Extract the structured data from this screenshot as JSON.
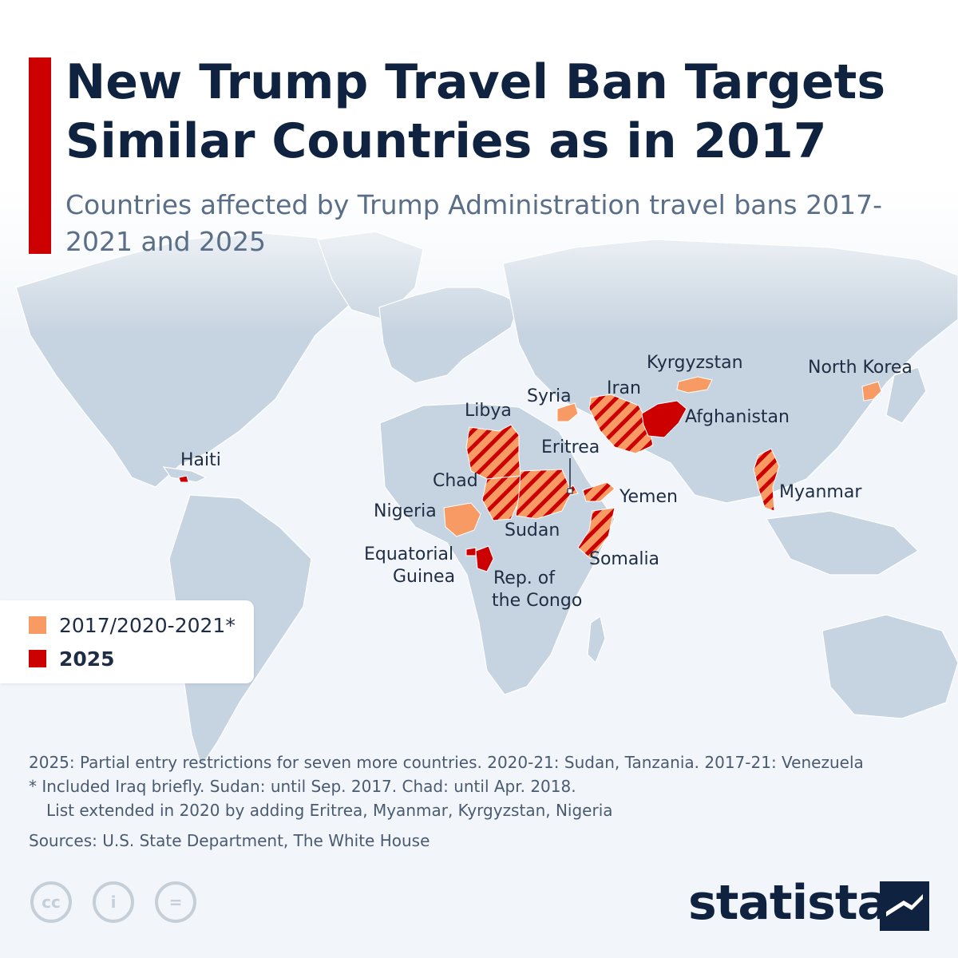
{
  "title": "New Trump Travel Ban Targets Similar Countries as in 2017",
  "subtitle": "Countries affected by Trump Administration travel bans 2017-2021 and 2025",
  "colors": {
    "earlier_ban": "#f79a63",
    "ban_2025": "#cc0000",
    "land": "#c6d3e0",
    "ocean": "#f2f6fa",
    "title": "#0f2340"
  },
  "legend": {
    "items": [
      {
        "label": "2017/2020-2021*",
        "color": "#f79a63",
        "bold": false
      },
      {
        "label": "2025",
        "color": "#cc0000",
        "bold": true
      }
    ]
  },
  "map_data": {
    "countries": [
      {
        "name": "Haiti",
        "status": "2025"
      },
      {
        "name": "Libya",
        "status": "both"
      },
      {
        "name": "Syria",
        "status": "2017/2020-2021"
      },
      {
        "name": "Iran",
        "status": "both"
      },
      {
        "name": "Kyrgyzstan",
        "status": "2017/2020-2021"
      },
      {
        "name": "North Korea",
        "status": "2017/2020-2021"
      },
      {
        "name": "Afghanistan",
        "status": "2025"
      },
      {
        "name": "Eritrea",
        "status": "both"
      },
      {
        "name": "Chad",
        "status": "both"
      },
      {
        "name": "Yemen",
        "status": "both"
      },
      {
        "name": "Myanmar",
        "status": "both"
      },
      {
        "name": "Nigeria",
        "status": "2017/2020-2021"
      },
      {
        "name": "Sudan",
        "status": "both"
      },
      {
        "name": "Somalia",
        "status": "both"
      },
      {
        "name": "Equatorial Guinea",
        "status": "2025"
      },
      {
        "name": "Rep. of the Congo",
        "status": "2025"
      }
    ]
  },
  "labels": {
    "haiti": "Haiti",
    "libya": "Libya",
    "syria": "Syria",
    "iran": "Iran",
    "kyrgyzstan": "Kyrgyzstan",
    "north_korea": "North Korea",
    "afghanistan": "Afghanistan",
    "eritrea": "Eritrea",
    "chad": "Chad",
    "yemen": "Yemen",
    "myanmar": "Myanmar",
    "nigeria": "Nigeria",
    "sudan": "Sudan",
    "somalia": "Somalia",
    "equatorial_guinea_1": "Equatorial",
    "equatorial_guinea_2": "Guinea",
    "congo_1": "Rep. of",
    "congo_2": "the Congo"
  },
  "notes": {
    "line1": "2025: Partial entry restrictions for seven more countries. 2020-21: Sudan, Tanzania. 2017-21: Venezuela",
    "line2": "* Included Iraq briefly. Sudan: until Sep. 2017. Chad: until Apr. 2018.",
    "line3": "List extended in 2020 by adding Eritrea, Myanmar, Kyrgyzstan, Nigeria",
    "sources": "Sources: U.S. State Department, The White House"
  },
  "license_icons": {
    "cc": "cc",
    "by": "i",
    "nd": "="
  },
  "brand": "statista"
}
